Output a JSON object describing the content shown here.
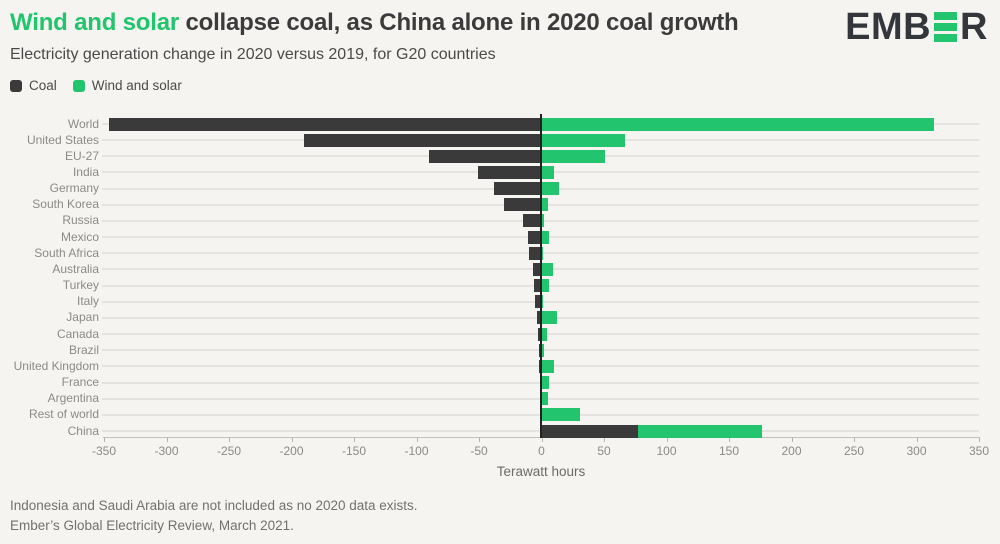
{
  "header": {
    "title_highlight": "Wind and solar",
    "title_rest": " collapse coal, as China alone in 2020 coal growth",
    "subtitle": "Electricity generation change in 2020 versus 2019, for G20 countries",
    "logo": {
      "left": "EMB",
      "right": "R",
      "name": "EMBER"
    }
  },
  "legend": [
    {
      "label": "Coal",
      "color": "#3a3a3a"
    },
    {
      "label": "Wind and solar",
      "color": "#22c46d"
    }
  ],
  "colors": {
    "background": "#f5f4f1",
    "coal": "#3a3a3a",
    "green": "#22c46d",
    "title_text": "#3b3b3b",
    "zero_line": "#222222"
  },
  "chart_data": {
    "type": "bar",
    "orientation": "horizontal",
    "stacked": true,
    "title": "Wind and solar collapse coal, as China alone in 2020 coal growth",
    "subtitle": "Electricity generation change in 2020 versus 2019, for G20 countries",
    "xlabel": "Terawatt hours",
    "unit": "TWh",
    "xlim": [
      -350,
      350
    ],
    "xticks": [
      -350,
      -300,
      -250,
      -200,
      -150,
      -100,
      -50,
      0,
      50,
      100,
      150,
      200,
      250,
      300,
      350
    ],
    "grid": "horizontal-row-lines",
    "legend_position": "top-left",
    "categories": [
      "World",
      "United States",
      "EU-27",
      "India",
      "Germany",
      "South Korea",
      "Russia",
      "Mexico",
      "South Africa",
      "Australia",
      "Turkey",
      "Italy",
      "Japan",
      "Canada",
      "Brazil",
      "United Kingdom",
      "France",
      "Argentina",
      "Rest of world",
      "China"
    ],
    "series": [
      {
        "name": "Coal",
        "color": "#3a3a3a",
        "values": [
          -346,
          -190,
          -90,
          -51,
          -38,
          -30,
          -15,
          -11,
          -10,
          -7,
          -6,
          -5,
          -4,
          -3,
          -2,
          -2,
          -1,
          -1,
          0,
          77
        ]
      },
      {
        "name": "Wind and solar",
        "color": "#22c46d",
        "values": [
          314,
          67,
          51,
          10,
          14,
          5,
          2,
          6,
          1,
          9,
          6,
          1,
          12,
          4,
          2,
          10,
          6,
          5,
          31,
          99
        ]
      }
    ]
  },
  "footer": {
    "line1": "Indonesia and Saudi Arabia are not included as no 2020 data exists.",
    "line2": "Ember’s Global Electricity Review, March 2021."
  }
}
